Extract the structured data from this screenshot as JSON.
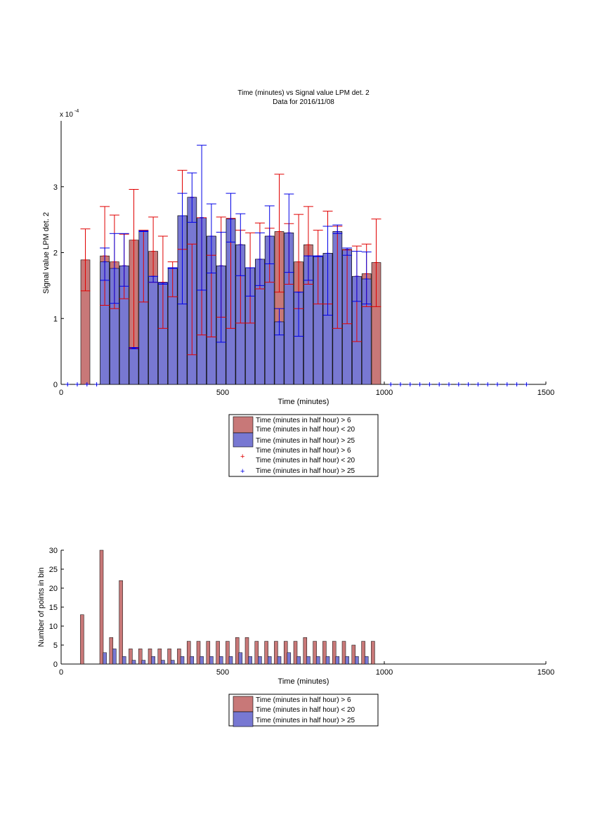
{
  "colors": {
    "red_bar": "#C87878",
    "blue_bar": "#7878D2",
    "red_err": "#E00000",
    "blue_err": "#0000E6",
    "axis": "#000000"
  },
  "chart_data": [
    {
      "type": "bar",
      "title": "Time (minutes) vs Signal value LPM det. 2",
      "subtitle": "Data for 2016/11/08",
      "xlabel": "Time (minutes)",
      "ylabel": "Signal value LPM det. 2",
      "y_exponent_label": "x 10",
      "y_exponent_power": "-4",
      "xlim": [
        0,
        1500
      ],
      "ylim": [
        0,
        4
      ],
      "xticks": [
        0,
        500,
        1000,
        1500
      ],
      "yticks": [
        0,
        1,
        2,
        3
      ],
      "grid": false,
      "legend_position": "below",
      "legend": [
        {
          "label": "Time (minutes in half hour) > 6",
          "label2": "Time (minutes in half hour) < 20",
          "kind": "bar",
          "series": "red"
        },
        {
          "label": "Time (minutes in half hour) > 25",
          "kind": "bar",
          "series": "blue"
        },
        {
          "label": "Time (minutes in half hour) > 6",
          "label2": "Time (minutes in half hour) < 20",
          "kind": "marker",
          "series": "red"
        },
        {
          "label": "Time (minutes in half hour) > 25",
          "kind": "marker",
          "series": "blue"
        }
      ],
      "series": [
        {
          "name": "Time (minutes in half hour) > 6 Time (minutes in half hour) < 20",
          "color": "red",
          "x": [
            75,
            135,
            165,
            195,
            225,
            255,
            285,
            315,
            345,
            375,
            405,
            435,
            465,
            495,
            525,
            555,
            585,
            615,
            645,
            675,
            705,
            735,
            765,
            795,
            825,
            855,
            885,
            915,
            945,
            975
          ],
          "y": [
            1.89,
            1.95,
            1.86,
            1.8,
            2.19,
            2.32,
            2.02,
            1.55,
            1.77,
            2.56,
            2.84,
            2.53,
            2.25,
            1.8,
            2.51,
            2.12,
            1.77,
            1.9,
            2.25,
            2.32,
            2.3,
            1.86,
            2.12,
            1.95,
            1.99,
            2.32,
            2.05,
            1.64,
            1.68,
            1.85
          ],
          "err_low": [
            1.42,
            1.2,
            1.15,
            1.3,
            0.55,
            1.25,
            1.55,
            0.85,
            1.33,
            2.05,
            0.45,
            0.75,
            0.72,
            1.02,
            0.85,
            0.93,
            0.93,
            1.45,
            1.55,
            1.4,
            1.52,
            1.15,
            1.52,
            1.22,
            1.22,
            0.85,
            0.92,
            0.65,
            1.18,
            1.18
          ],
          "err_high": [
            2.36,
            2.7,
            2.57,
            2.28,
            2.96,
            2.34,
            2.54,
            2.25,
            1.86,
            3.25,
            2.13,
            2.53,
            1.96,
            2.54,
            2.52,
            2.34,
            2.3,
            2.45,
            2.37,
            3.19,
            2.44,
            2.58,
            2.7,
            2.34,
            2.63,
            2.4,
            2.04,
            2.1,
            2.13,
            2.51
          ]
        },
        {
          "name": "Time (minutes in half hour) > 25",
          "color": "blue",
          "x": [
            135,
            165,
            195,
            225,
            255,
            285,
            315,
            345,
            375,
            405,
            435,
            465,
            495,
            525,
            555,
            585,
            615,
            645,
            675,
            705,
            735,
            765,
            795,
            825,
            855,
            885,
            915,
            945
          ],
          "y": [
            1.86,
            1.76,
            1.8,
            0.55,
            2.32,
            1.64,
            1.54,
            1.77,
            2.56,
            2.84,
            2.53,
            2.25,
            1.8,
            2.51,
            2.12,
            1.77,
            1.9,
            2.25,
            0.95,
            2.3,
            1.4,
            1.95,
            1.95,
            1.99,
            2.32,
            2.05,
            1.64,
            1.6
          ],
          "err_low": [
            1.58,
            1.23,
            1.49,
            0.56,
            2.33,
            1.55,
            1.52,
            1.76,
            1.22,
            2.46,
            1.43,
            1.69,
            0.64,
            2.16,
            1.65,
            1.34,
            1.5,
            1.83,
            0.75,
            1.7,
            0.73,
            1.58,
            1.94,
            1.05,
            2.29,
            1.96,
            1.26,
            1.22
          ],
          "err_high": [
            2.07,
            2.29,
            2.29,
            0.54,
            2.32,
            1.64,
            1.54,
            1.77,
            2.9,
            3.21,
            3.63,
            2.74,
            2.31,
            2.9,
            2.59,
            1.77,
            2.3,
            2.71,
            1.15,
            2.89,
            1.4,
            1.95,
            1.95,
            2.4,
            2.42,
            2.07,
            2.02,
            2.01
          ]
        }
      ],
      "zero_markers_x": [
        20,
        50,
        80,
        110,
        1020,
        1050,
        1080,
        1110,
        1140,
        1170,
        1200,
        1230,
        1260,
        1290,
        1320,
        1350,
        1380,
        1410,
        1440
      ]
    },
    {
      "type": "bar",
      "title": "",
      "xlabel": "Time (minutes)",
      "ylabel": "Number of points in bin",
      "xlim": [
        0,
        1500
      ],
      "ylim": [
        0,
        30
      ],
      "xticks": [
        0,
        500,
        1000,
        1500
      ],
      "yticks": [
        0,
        5,
        10,
        15,
        20,
        25,
        30
      ],
      "grid": false,
      "legend_position": "below",
      "legend": [
        {
          "label": "Time (minutes in half hour) > 6",
          "label2": "Time (minutes in half hour) < 20",
          "kind": "bar",
          "series": "red"
        },
        {
          "label": "Time (minutes in half hour) > 25",
          "kind": "bar",
          "series": "blue"
        }
      ],
      "series": [
        {
          "name": "Time (minutes in half hour) > 6 Time (minutes in half hour) < 20",
          "color": "red",
          "x": [
            65,
            125,
            155,
            185,
            215,
            245,
            275,
            305,
            335,
            365,
            395,
            425,
            455,
            485,
            515,
            545,
            575,
            605,
            635,
            665,
            695,
            725,
            755,
            785,
            815,
            845,
            875,
            905,
            935,
            965
          ],
          "values": [
            13,
            30,
            7,
            22,
            4,
            4,
            4,
            4,
            4,
            4,
            6,
            6,
            6,
            6,
            6,
            7,
            7,
            6,
            6,
            6,
            6,
            6,
            7,
            6,
            6,
            6,
            6,
            5,
            6,
            6
          ]
        },
        {
          "name": "Time (minutes in half hour) > 25",
          "color": "blue",
          "x": [
            135,
            165,
            195,
            225,
            255,
            285,
            315,
            345,
            375,
            405,
            435,
            465,
            495,
            525,
            555,
            585,
            615,
            645,
            675,
            705,
            735,
            765,
            795,
            825,
            855,
            885,
            915,
            945
          ],
          "values": [
            3,
            4,
            2,
            1,
            1,
            2,
            1,
            1,
            2,
            2,
            2,
            2,
            2,
            2,
            3,
            2,
            2,
            2,
            2,
            3,
            2,
            2,
            2,
            2,
            2,
            2,
            2,
            2
          ]
        }
      ]
    }
  ]
}
